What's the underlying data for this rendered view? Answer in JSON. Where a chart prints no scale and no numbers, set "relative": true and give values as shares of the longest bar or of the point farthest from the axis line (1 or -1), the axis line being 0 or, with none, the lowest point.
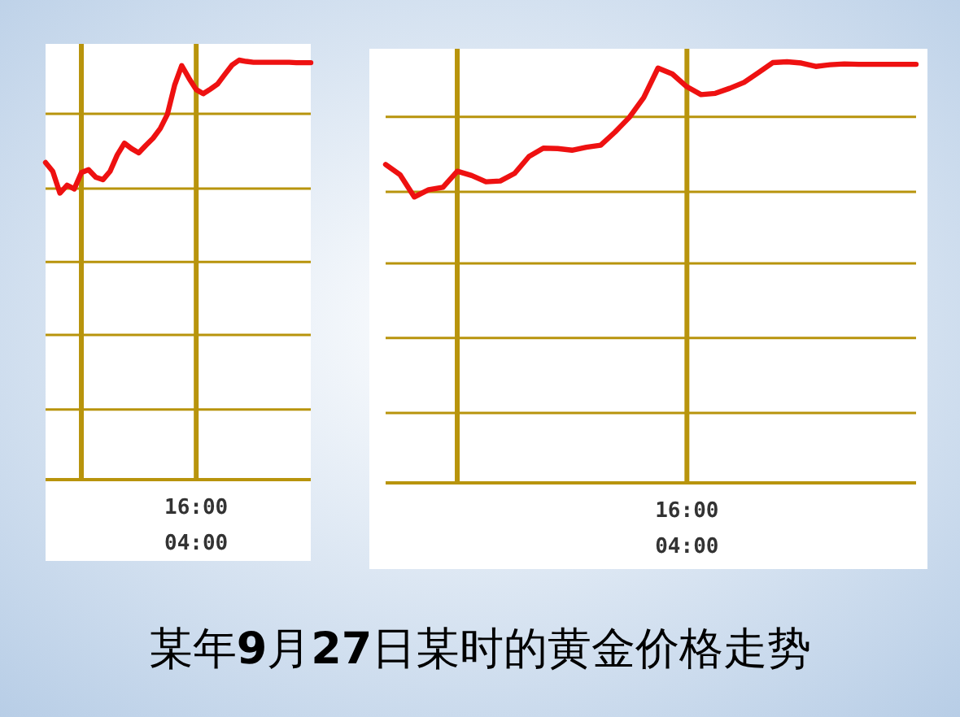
{
  "chart_data": [
    {
      "type": "line",
      "title": "某年9月27日某时的黄金价格走势",
      "relative": true,
      "ref_lines": [
        {
          "axis": "y",
          "value": 0.167,
          "color": "#b8940c"
        },
        {
          "axis": "y",
          "value": 0.345,
          "color": "#b8940c"
        },
        {
          "axis": "y",
          "value": 0.519,
          "color": "#b8940c"
        },
        {
          "axis": "y",
          "value": 0.694,
          "color": "#b8940c"
        },
        {
          "axis": "y",
          "value": 0.872,
          "color": "#b8940c"
        }
      ],
      "categories": [
        null,
        null,
        null,
        null,
        null,
        null,
        null,
        null,
        null,
        null,
        null,
        null,
        null,
        null,
        null,
        null,
        null,
        null,
        null,
        null,
        null,
        null,
        null,
        null,
        null,
        null,
        null,
        null,
        null,
        null,
        null,
        null,
        null,
        null,
        null,
        null,
        null,
        null
      ],
      "annotations": [
        "16:00",
        "04:00"
      ],
      "series": [
        {
          "color": "#ee1111",
          "values": [
            0.756,
            0.735,
            0.683,
            0.702,
            0.693,
            0.732,
            0.739,
            0.721,
            0.715,
            0.735,
            0.774,
            0.802,
            0.789,
            0.779,
            0.797,
            0.814,
            0.837,
            0.871,
            0.94,
            0.987,
            0.957,
            0.93,
            0.92,
            0.931,
            0.943,
            0.966,
            0.988,
            1,
            0.997,
            0.995,
            0.995,
            0.995,
            0.995,
            0.995,
            0.995,
            0.994,
            0.994,
            0.994
          ]
        }
      ]
    },
    {
      "type": "line",
      "relative": true,
      "ref_lines": [
        {
          "axis": "y",
          "value": 0.166,
          "color": "#b8940c"
        },
        {
          "axis": "y",
          "value": 0.344,
          "color": "#b8940c"
        },
        {
          "axis": "y",
          "value": 0.521,
          "color": "#b8940c"
        },
        {
          "axis": "y",
          "value": 0.691,
          "color": "#b8940c"
        },
        {
          "axis": "y",
          "value": 0.869,
          "color": "#b8940c"
        }
      ],
      "categories": [
        null,
        null,
        null,
        null,
        null,
        null,
        null,
        null,
        null,
        null,
        null,
        null,
        null,
        null,
        null,
        null,
        null,
        null,
        null,
        null,
        null,
        null,
        null,
        null,
        null,
        null,
        null,
        null,
        null,
        null,
        null,
        null,
        null,
        null,
        null,
        null,
        null,
        null
      ],
      "annotations": [
        "16:00",
        "04:00"
      ],
      "series": [
        {
          "color": "#ee1111",
          "values": [
            0.756,
            0.732,
            0.679,
            0.696,
            0.702,
            0.74,
            0.73,
            0.715,
            0.717,
            0.735,
            0.775,
            0.795,
            0.794,
            0.79,
            0.797,
            0.802,
            0.833,
            0.868,
            0.915,
            0.985,
            0.971,
            0.941,
            0.922,
            0.925,
            0.937,
            0.951,
            0.974,
            0.998,
            1,
            0.997,
            0.989,
            0.993,
            0.995,
            0.994,
            0.994,
            0.994,
            0.994,
            0.994
          ]
        }
      ]
    }
  ]
}
